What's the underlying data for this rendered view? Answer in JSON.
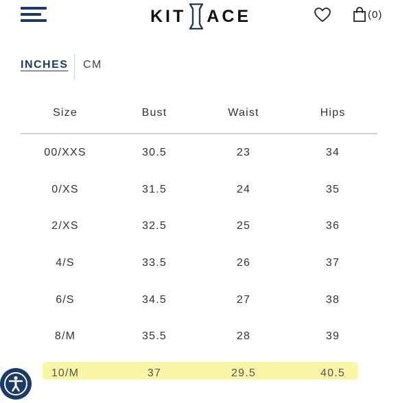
{
  "header": {
    "logo_left": "KIT",
    "logo_right": "ACE",
    "bag_count": "(0)",
    "icons": [
      "menu-icon",
      "logo-emblem-icon",
      "heart-icon",
      "shopping-bag-icon",
      "accessibility-icon"
    ]
  },
  "units": {
    "inches": "INCHES",
    "cm": "CM",
    "active": "INCHES"
  },
  "table": {
    "headers": [
      "Size",
      "Bust",
      "Waist",
      "Hips"
    ],
    "rows": [
      [
        "00/XXS",
        "30.5",
        "23",
        "34"
      ],
      [
        "0/XS",
        "31.5",
        "24",
        "35"
      ],
      [
        "2/XS",
        "32.5",
        "25",
        "36"
      ],
      [
        "4/S",
        "33.5",
        "26",
        "37"
      ],
      [
        "6/S",
        "34.5",
        "27",
        "38"
      ],
      [
        "8/M",
        "35.5",
        "28",
        "39"
      ],
      [
        "10/M",
        "37",
        "29.5",
        "40.5"
      ]
    ],
    "highlighted_row": "10/M"
  },
  "colors": {
    "brand": "#1a3a6b",
    "highlight": "#f8f7a6",
    "divider": "#cfcfcf"
  }
}
